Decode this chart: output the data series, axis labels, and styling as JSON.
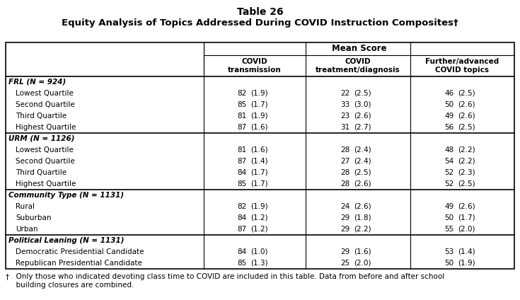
{
  "title_line1": "Table 26",
  "title_line2": "Equity Analysis of Topics Addressed During COVID Instruction Composites†",
  "header_span": "Mean Score",
  "col_headers": [
    "COVID\ntransmission",
    "COVID\ntreatment/diagnosis",
    "Further/advanced\nCOVID topics"
  ],
  "sections": [
    {
      "label": "FRL (N = 924)",
      "rows": [
        [
          "Lowest Quartile",
          "82",
          "(1.9)",
          "22",
          "(2.5)",
          "46",
          "(2.5)"
        ],
        [
          "Second Quartile",
          "85",
          "(1.7)",
          "33",
          "(3.0)",
          "50",
          "(2.6)"
        ],
        [
          "Third Quartile",
          "81",
          "(1.9)",
          "23",
          "(2.6)",
          "49",
          "(2.6)"
        ],
        [
          "Highest Quartile",
          "87",
          "(1.6)",
          "31",
          "(2.7)",
          "56",
          "(2.5)"
        ]
      ]
    },
    {
      "label": "URM (N = 1126)",
      "rows": [
        [
          "Lowest Quartile",
          "81",
          "(1.6)",
          "28",
          "(2.4)",
          "48",
          "(2.2)"
        ],
        [
          "Second Quartile",
          "87",
          "(1.4)",
          "27",
          "(2.4)",
          "54",
          "(2.2)"
        ],
        [
          "Third Quartile",
          "84",
          "(1.7)",
          "28",
          "(2.5)",
          "52",
          "(2.3)"
        ],
        [
          "Highest Quartile",
          "85",
          "(1.7)",
          "28",
          "(2.6)",
          "52",
          "(2.5)"
        ]
      ]
    },
    {
      "label": "Community Type (N = 1131)",
      "rows": [
        [
          "Rural",
          "82",
          "(1.9)",
          "24",
          "(2.6)",
          "49",
          "(2.6)"
        ],
        [
          "Suburban",
          "84",
          "(1.2)",
          "29",
          "(1.8)",
          "50",
          "(1.7)"
        ],
        [
          "Urban",
          "87",
          "(1.2)",
          "29",
          "(2.2)",
          "55",
          "(2.0)"
        ]
      ]
    },
    {
      "label": "Political Leaning (N = 1131)",
      "rows": [
        [
          "Democratic Presidential Candidate",
          "84",
          "(1.0)",
          "29",
          "(1.6)",
          "53",
          "(1.4)"
        ],
        [
          "Republican Presidential Candidate",
          "85",
          "(1.3)",
          "25",
          "(2.0)",
          "50",
          "(1.9)"
        ]
      ]
    }
  ],
  "footnote_sym": "†",
  "footnote_text": "  Only those who indicated devoting class time to COVID are included in this table. Data from before and after school\n  building closures are combined.",
  "bg_color": "#ffffff",
  "text_color": "#000000"
}
